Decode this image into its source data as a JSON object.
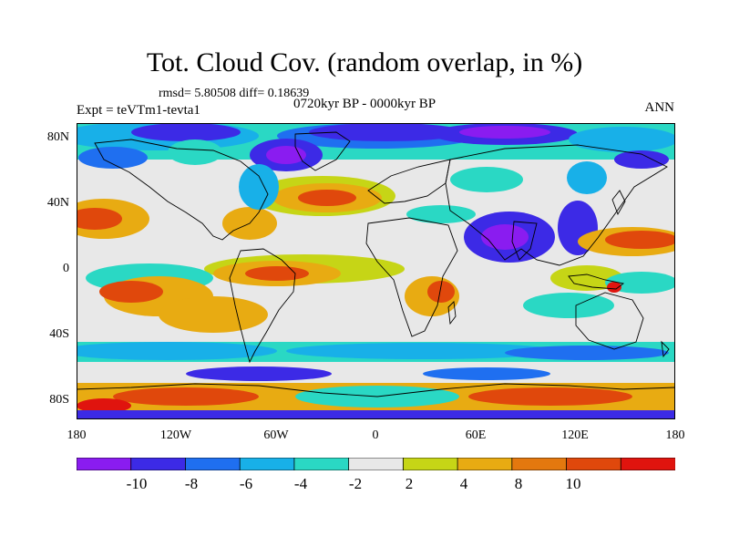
{
  "title": "Tot. Cloud Cov. (random overlap, in %)",
  "stats": "rmsd= 5.80508 diff= 0.18639",
  "experiment": "Expt = teVTm1-tevta1",
  "period": "0720kyr BP - 0000kyr BP",
  "season": "ANN",
  "map": {
    "type": "filled-contour world map, cylindrical equidistant",
    "variable": "total cloud cover difference (%)",
    "lon_range": [
      -180,
      180
    ],
    "lat_range": [
      -90,
      90
    ],
    "x_ticks": [
      "180",
      "120W",
      "60W",
      "0",
      "60E",
      "120E",
      "180"
    ],
    "y_ticks": [
      "80N",
      "40N",
      "0",
      "40S",
      "80S"
    ]
  },
  "colorbar": {
    "labels": [
      "-10",
      "-8",
      "-6",
      "-4",
      "-2",
      "2",
      "4",
      "8",
      "10"
    ],
    "colors": [
      "#8a1cf0",
      "#3c2ae6",
      "#1f6ff0",
      "#18b0e8",
      "#2ad8c4",
      "#e8e8e8",
      "#c6d516",
      "#e8ab12",
      "#e4780e",
      "#e0480c",
      "#e0140e"
    ]
  },
  "colors": {
    "neutral": "#e8e8e8",
    "coastline": "#000000"
  }
}
